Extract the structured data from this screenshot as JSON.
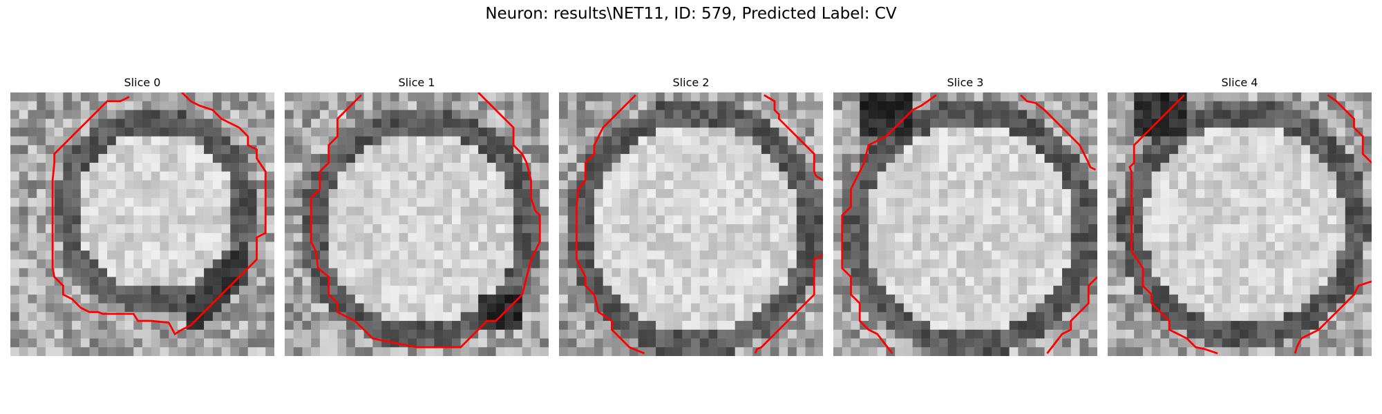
{
  "figure": {
    "title": "Neuron: results\\NET11, ID: 579, Predicted Label: CV"
  },
  "panels": [
    {
      "title": "Slice 0"
    },
    {
      "title": "Slice 1"
    },
    {
      "title": "Slice 2"
    },
    {
      "title": "Slice 3"
    },
    {
      "title": "Slice 4"
    }
  ],
  "colors": {
    "contour": "#ff0000",
    "background": "#ffffff"
  }
}
